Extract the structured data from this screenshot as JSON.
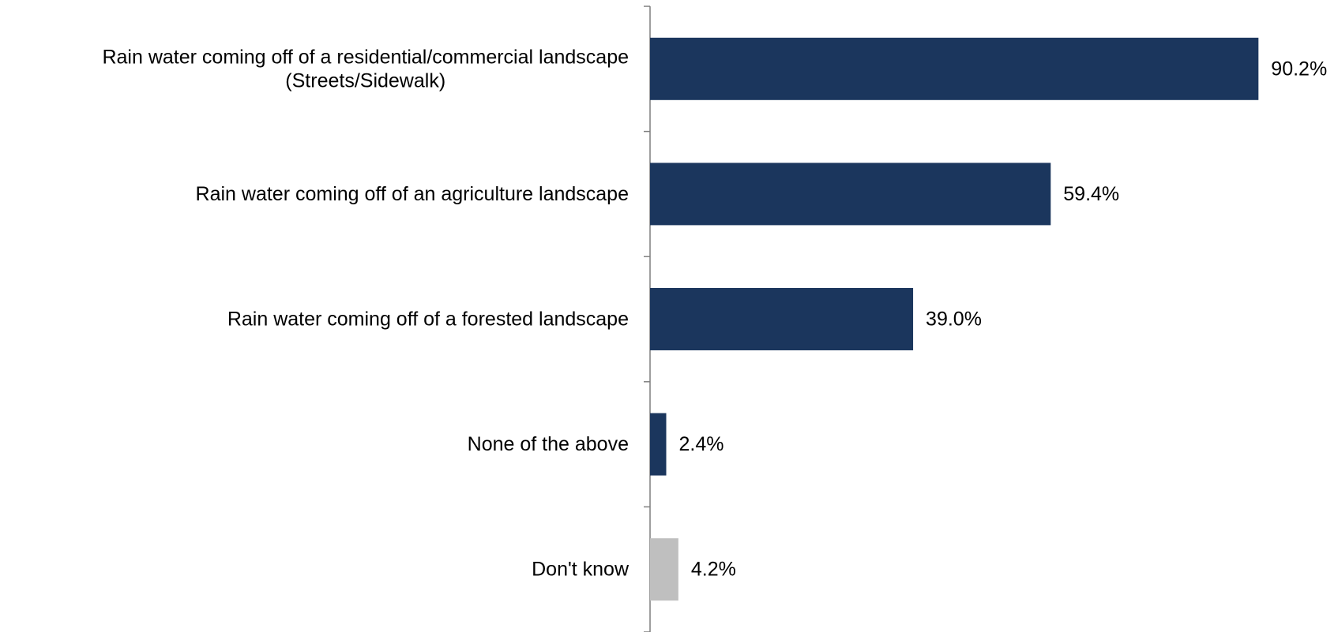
{
  "chart_data": {
    "type": "bar",
    "orientation": "horizontal",
    "categories": [
      [
        "Rain water coming off of a residential/commercial landscape",
        "(Streets/Sidewalk)"
      ],
      [
        "Rain water coming off of an agriculture landscape"
      ],
      [
        "Rain water coming off of a forested  landscape"
      ],
      [
        "None of the above"
      ],
      [
        "Don't know"
      ]
    ],
    "values": [
      90.2,
      59.4,
      39.0,
      2.4,
      4.2
    ],
    "value_labels": [
      "90.2%",
      "59.4%",
      "39.0%",
      "2.4%",
      "4.2%"
    ],
    "colors": [
      "#1b365d",
      "#1b365d",
      "#1b365d",
      "#1b365d",
      "#bfbfbf"
    ],
    "axis_color": "#7f7f7f",
    "xlim": [
      0,
      100
    ],
    "grid": false,
    "legend": "none",
    "title": "",
    "xlabel": "",
    "ylabel": ""
  }
}
